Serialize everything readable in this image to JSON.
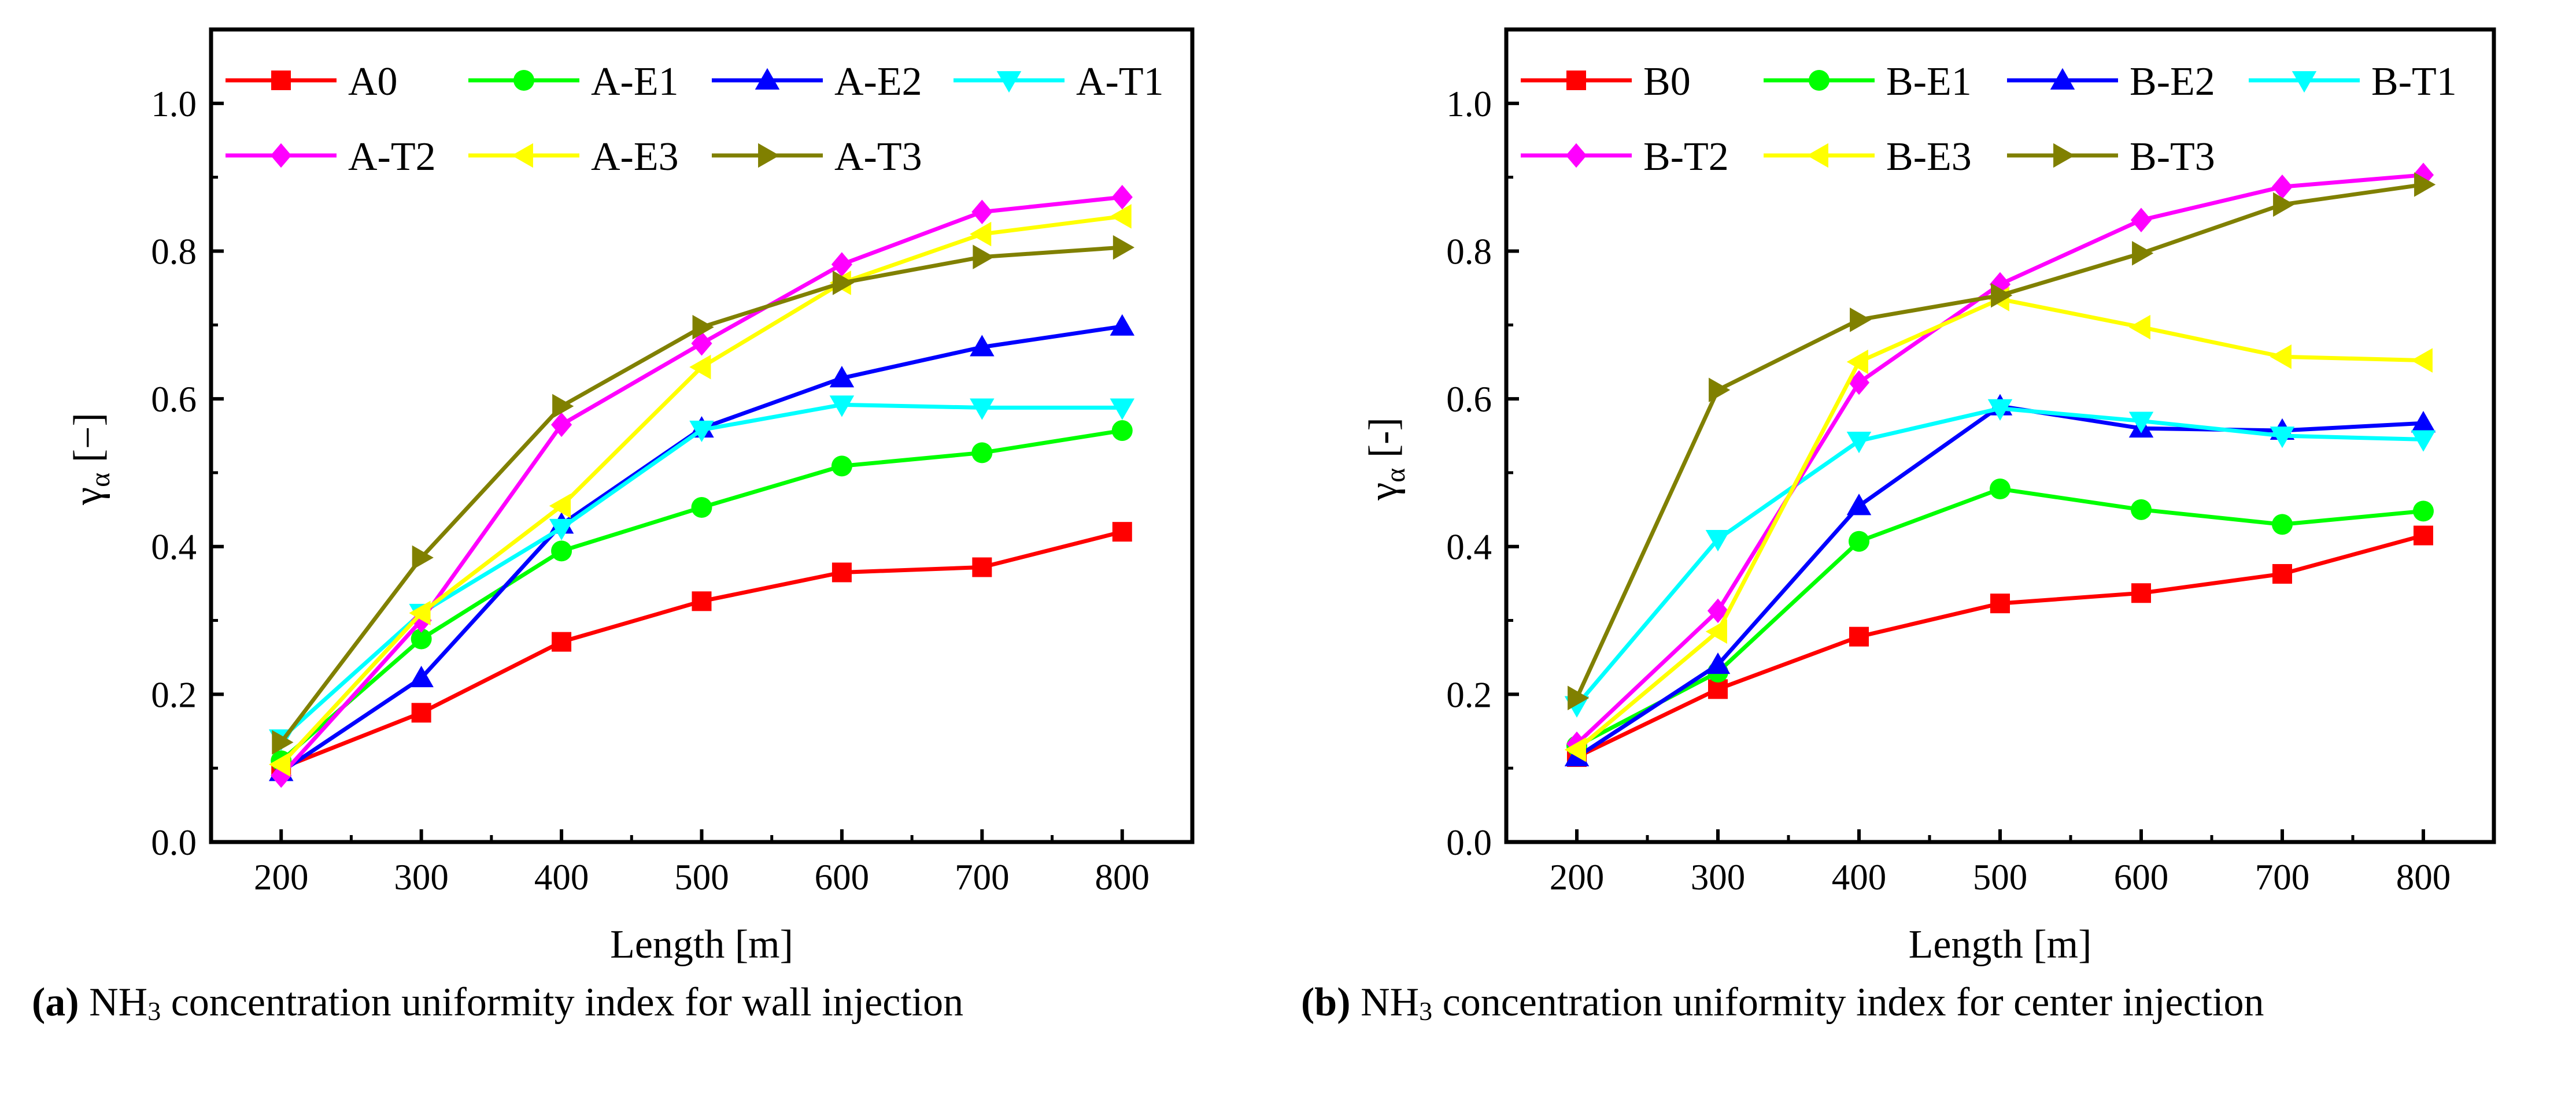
{
  "chart_data": [
    {
      "type": "line",
      "panel": "a",
      "xlabel": "Length [m]",
      "ylabel": {
        "main": "γ",
        "sub": "α",
        "unit": " [−]"
      },
      "x": [
        200,
        300,
        400,
        500,
        600,
        700,
        800
      ],
      "xlim": [
        150,
        850
      ],
      "ylim": [
        0,
        1.1
      ],
      "xticks": [
        200,
        300,
        400,
        500,
        600,
        700,
        800
      ],
      "yticks": [
        "0.0",
        "0.2",
        "0.4",
        "0.6",
        "0.8",
        "1.0"
      ],
      "legend_position": "top",
      "series": [
        {
          "name": "A0",
          "color": "#ff0000",
          "marker": "square",
          "values": [
            0.1,
            0.175,
            0.271,
            0.326,
            0.365,
            0.372,
            0.42
          ]
        },
        {
          "name": "A-E1",
          "color": "#00ff00",
          "marker": "circle",
          "values": [
            0.11,
            0.275,
            0.394,
            0.453,
            0.509,
            0.527,
            0.557
          ]
        },
        {
          "name": "A-E2",
          "color": "#0000ff",
          "marker": "triangle-up",
          "values": [
            0.095,
            0.222,
            0.43,
            0.56,
            0.628,
            0.67,
            0.698
          ]
        },
        {
          "name": "A-T1",
          "color": "#00ffff",
          "marker": "triangle-down",
          "values": [
            0.14,
            0.31,
            0.425,
            0.558,
            0.592,
            0.588,
            0.588
          ]
        },
        {
          "name": "A-T2",
          "color": "#ff00ff",
          "marker": "diamond",
          "values": [
            0.09,
            0.3,
            0.565,
            0.675,
            0.782,
            0.853,
            0.873
          ]
        },
        {
          "name": "A-E3",
          "color": "#ffff00",
          "marker": "triangle-left",
          "values": [
            0.105,
            0.31,
            0.455,
            0.643,
            0.757,
            0.823,
            0.847
          ]
        },
        {
          "name": "A-T3",
          "color": "#808000",
          "marker": "triangle-right",
          "values": [
            0.135,
            0.385,
            0.59,
            0.697,
            0.757,
            0.792,
            0.805
          ]
        }
      ],
      "caption": {
        "label": "(a)",
        "prefix": " NH",
        "sub": "3",
        "suffix": " concentration uniformity index for wall injection"
      }
    },
    {
      "type": "line",
      "panel": "b",
      "xlabel": "Length [m]",
      "ylabel": {
        "main": "γ",
        "sub": "α",
        "unit": " [-]"
      },
      "x": [
        200,
        300,
        400,
        500,
        600,
        700,
        800
      ],
      "xlim": [
        150,
        850
      ],
      "ylim": [
        0,
        1.1
      ],
      "xticks": [
        200,
        300,
        400,
        500,
        600,
        700,
        800
      ],
      "yticks": [
        "0.0",
        "0.2",
        "0.4",
        "0.6",
        "0.8",
        "1.0"
      ],
      "legend_position": "top",
      "series": [
        {
          "name": "B0",
          "color": "#ff0000",
          "marker": "square",
          "values": [
            0.115,
            0.207,
            0.278,
            0.323,
            0.337,
            0.363,
            0.415
          ]
        },
        {
          "name": "B-E1",
          "color": "#00ff00",
          "marker": "circle",
          "values": [
            0.13,
            0.23,
            0.407,
            0.478,
            0.45,
            0.43,
            0.448
          ]
        },
        {
          "name": "B-E2",
          "color": "#0000ff",
          "marker": "triangle-up",
          "values": [
            0.115,
            0.24,
            0.455,
            0.59,
            0.56,
            0.557,
            0.567
          ]
        },
        {
          "name": "B-T1",
          "color": "#00ffff",
          "marker": "triangle-down",
          "values": [
            0.185,
            0.41,
            0.543,
            0.587,
            0.57,
            0.55,
            0.545
          ]
        },
        {
          "name": "B-T2",
          "color": "#ff00ff",
          "marker": "diamond",
          "values": [
            0.133,
            0.313,
            0.622,
            0.755,
            0.842,
            0.887,
            0.903
          ]
        },
        {
          "name": "B-E3",
          "color": "#ffff00",
          "marker": "triangle-left",
          "values": [
            0.125,
            0.285,
            0.65,
            0.735,
            0.697,
            0.657,
            0.652
          ]
        },
        {
          "name": "B-T3",
          "color": "#808000",
          "marker": "triangle-right",
          "values": [
            0.195,
            0.612,
            0.707,
            0.74,
            0.797,
            0.863,
            0.89
          ]
        }
      ],
      "caption": {
        "label": "(b)",
        "prefix": " NH",
        "sub": "3",
        "suffix": " concentration uniformity index for center injection"
      }
    }
  ]
}
